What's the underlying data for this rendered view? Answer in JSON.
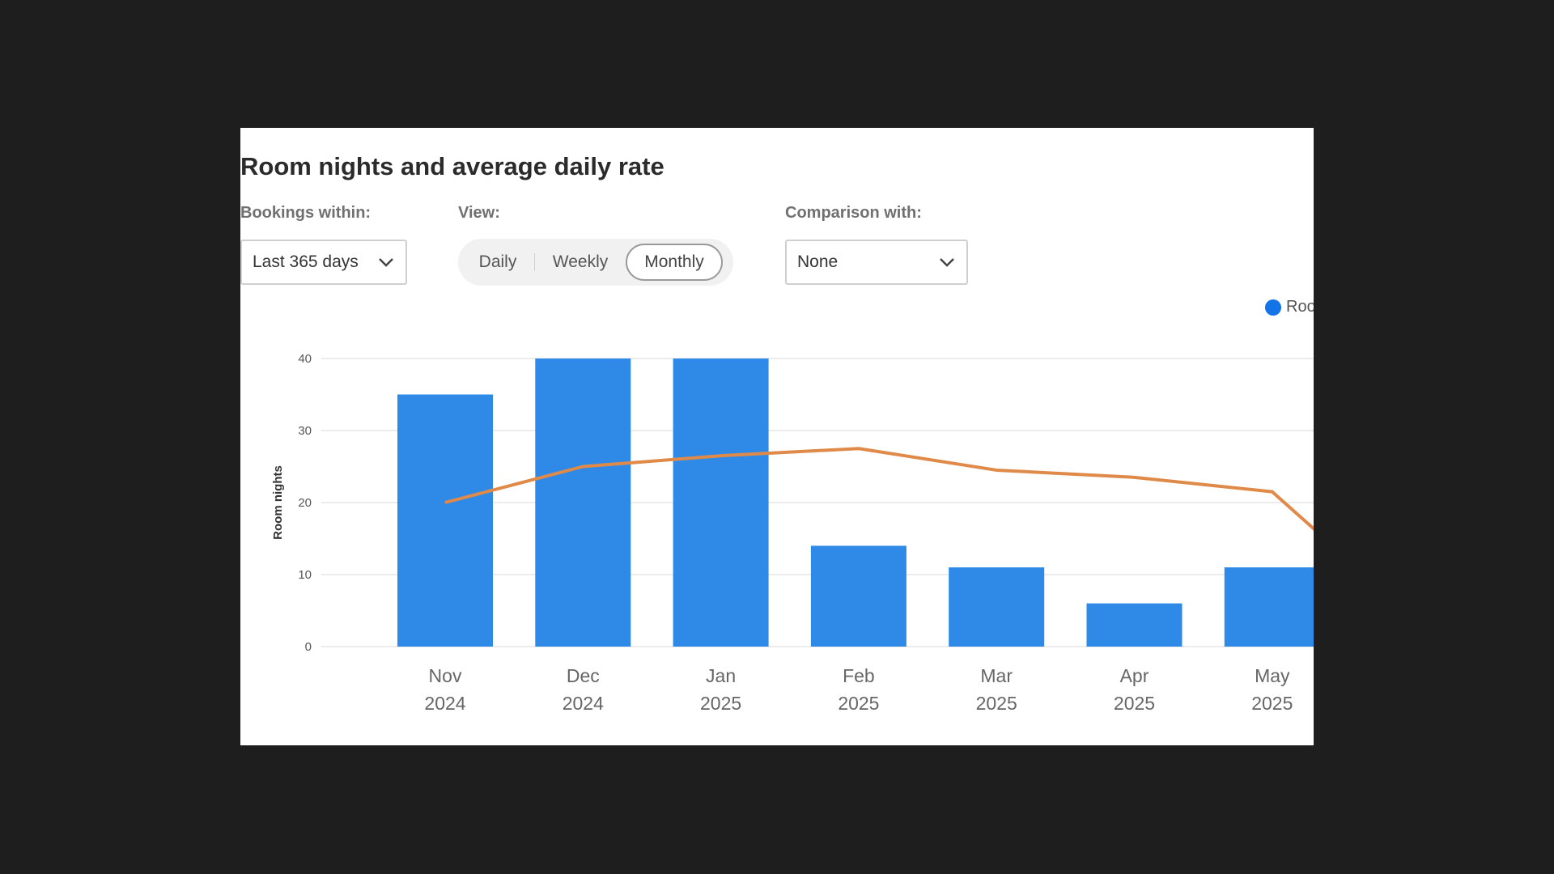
{
  "title": "Room nights and average daily rate",
  "controls": {
    "bookings_label": "Bookings within:",
    "bookings_value": "Last 365 days",
    "view_label": "View:",
    "view_options": [
      "Daily",
      "Weekly",
      "Monthly"
    ],
    "view_selected": "Monthly",
    "comparison_label": "Comparison with:",
    "comparison_value": "None"
  },
  "legend": {
    "visible_text": "Roo",
    "dot_color": "#1473e6"
  },
  "chart_data": {
    "type": "bar",
    "ylabel": "Room nights",
    "ylim": [
      0,
      40
    ],
    "yticks": [
      0,
      10,
      20,
      30,
      40
    ],
    "categories": [
      [
        "Nov",
        "2024"
      ],
      [
        "Dec",
        "2024"
      ],
      [
        "Jan",
        "2025"
      ],
      [
        "Feb",
        "2025"
      ],
      [
        "Mar",
        "2025"
      ],
      [
        "Apr",
        "2025"
      ],
      [
        "May",
        "2025"
      ]
    ],
    "series": [
      {
        "type": "bar",
        "values": [
          35,
          40,
          40,
          14,
          11,
          6,
          11
        ],
        "color": "#2e8ae6"
      },
      {
        "type": "line",
        "values": [
          20,
          25,
          26.5,
          27.5,
          24.5,
          23.5,
          21.5
        ],
        "color": "#e08a4a",
        "continues_past_edge_to": 14.5
      }
    ],
    "grid": true
  }
}
